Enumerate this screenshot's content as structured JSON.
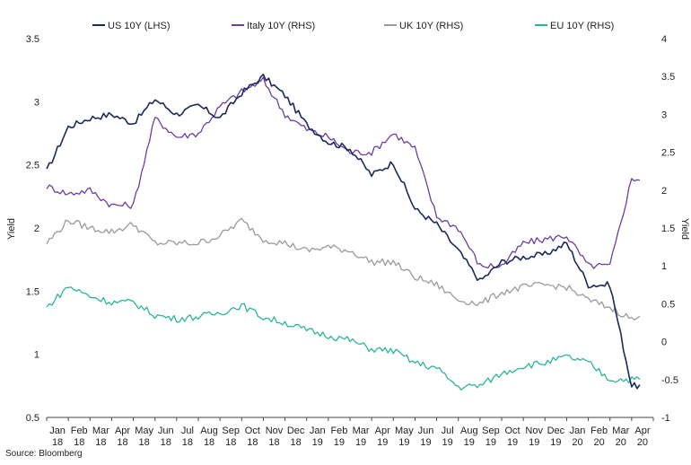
{
  "chart_data": {
    "type": "line",
    "source": "Source: Bloomberg",
    "left_axis": {
      "label": "Yield",
      "min": 0.5,
      "max": 3.5,
      "ticks": [
        "0.5",
        "1",
        "1.5",
        "2",
        "2.5",
        "3",
        "3.5"
      ],
      "tick_values": [
        0.5,
        1,
        1.5,
        2,
        2.5,
        3,
        3.5
      ]
    },
    "right_axis": {
      "label": "Yield",
      "min": -1,
      "max": 4,
      "ticks": [
        "-1",
        "-0.5",
        "0",
        "0.5",
        "1",
        "1.5",
        "2",
        "2.5",
        "3",
        "3.5",
        "4"
      ],
      "tick_values": [
        -1,
        -0.5,
        0,
        0.5,
        1,
        1.5,
        2,
        2.5,
        3,
        3.5,
        4
      ]
    },
    "x_axis": {
      "months": [
        {
          "m": "Jan",
          "y": "18"
        },
        {
          "m": "Feb",
          "y": "18"
        },
        {
          "m": "Mar",
          "y": "18"
        },
        {
          "m": "Apr",
          "y": "18"
        },
        {
          "m": "May",
          "y": "18"
        },
        {
          "m": "Jun",
          "y": "18"
        },
        {
          "m": "Jul",
          "y": "18"
        },
        {
          "m": "Aug",
          "y": "18"
        },
        {
          "m": "Sep",
          "y": "18"
        },
        {
          "m": "Oct",
          "y": "18"
        },
        {
          "m": "Nov",
          "y": "18"
        },
        {
          "m": "Dec",
          "y": "18"
        },
        {
          "m": "Jan",
          "y": "19"
        },
        {
          "m": "Feb",
          "y": "19"
        },
        {
          "m": "Mar",
          "y": "19"
        },
        {
          "m": "Apr",
          "y": "19"
        },
        {
          "m": "May",
          "y": "19"
        },
        {
          "m": "Jun",
          "y": "19"
        },
        {
          "m": "Jul",
          "y": "19"
        },
        {
          "m": "Aug",
          "y": "19"
        },
        {
          "m": "Sep",
          "y": "19"
        },
        {
          "m": "Oct",
          "y": "19"
        },
        {
          "m": "Nov",
          "y": "19"
        },
        {
          "m": "Dec",
          "y": "19"
        },
        {
          "m": "Jan",
          "y": "20"
        },
        {
          "m": "Feb",
          "y": "20"
        },
        {
          "m": "Mar",
          "y": "20"
        },
        {
          "m": "Apr",
          "y": "20"
        }
      ]
    },
    "legend_position": "top",
    "series": [
      {
        "name": "US 10Y (LHS)",
        "axis": "left",
        "color": "#1a2a5a",
        "values": [
          2.45,
          2.8,
          2.87,
          2.9,
          2.83,
          3.02,
          2.9,
          2.97,
          2.87,
          3.07,
          3.2,
          3.05,
          2.82,
          2.68,
          2.63,
          2.42,
          2.52,
          2.15,
          2.03,
          1.82,
          1.58,
          1.73,
          1.77,
          1.79,
          1.88,
          1.55,
          1.55,
          0.75
        ]
      },
      {
        "name": "Italy 10Y (RHS)",
        "axis": "right",
        "color": "#6a3fa0",
        "values": [
          2.05,
          1.95,
          2.0,
          1.8,
          1.8,
          2.95,
          2.7,
          2.75,
          3.1,
          3.3,
          3.45,
          3.0,
          2.8,
          2.7,
          2.5,
          2.5,
          2.75,
          2.55,
          1.65,
          1.5,
          1.0,
          1.0,
          1.3,
          1.35,
          1.4,
          1.0,
          1.0,
          2.15
        ]
      },
      {
        "name": "UK 10Y (RHS)",
        "axis": "right",
        "color": "#9a9a9a",
        "values": [
          1.3,
          1.6,
          1.5,
          1.45,
          1.55,
          1.3,
          1.3,
          1.3,
          1.4,
          1.6,
          1.35,
          1.3,
          1.2,
          1.25,
          1.2,
          1.05,
          1.05,
          0.85,
          0.75,
          0.55,
          0.5,
          0.65,
          0.72,
          0.75,
          0.72,
          0.55,
          0.45,
          0.3
        ]
      },
      {
        "name": "EU 10Y (RHS)",
        "axis": "right",
        "color": "#2ab59a",
        "values": [
          0.45,
          0.73,
          0.6,
          0.52,
          0.52,
          0.35,
          0.3,
          0.33,
          0.38,
          0.48,
          0.32,
          0.25,
          0.15,
          0.08,
          0.02,
          -0.1,
          -0.12,
          -0.28,
          -0.35,
          -0.6,
          -0.58,
          -0.42,
          -0.32,
          -0.28,
          -0.2,
          -0.28,
          -0.5,
          -0.5
        ]
      }
    ]
  }
}
